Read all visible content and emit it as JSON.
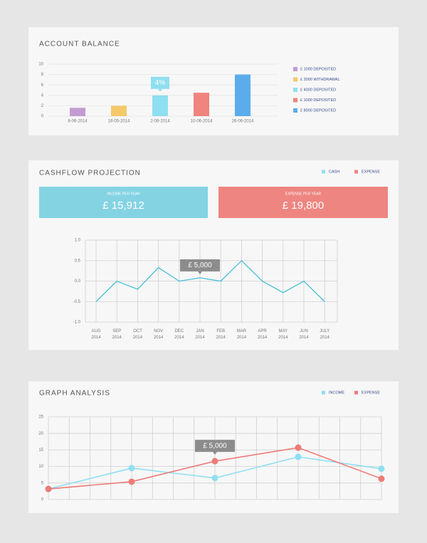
{
  "chart_data": [
    {
      "type": "bar",
      "title": "ACCOUNT BALANCE",
      "categories": [
        "8-06-2014",
        "16-05-2014",
        "2-06-2014",
        "10-06-2014",
        "26-06-2014"
      ],
      "values": [
        1.6,
        2,
        4,
        4.5,
        8
      ],
      "colors": [
        "#c39bd3",
        "#f5c86a",
        "#8fdff0",
        "#f0847e",
        "#5aacea"
      ],
      "legend": [
        "£ 1000 DEPOSITED",
        "£ 2000 WITHDRAWAL",
        "£ 4000 DEPOSITED",
        "£ 1000 DEPOSITED",
        "£ 8000 DEPOSITED"
      ],
      "ylim": [
        0,
        10
      ],
      "yticks": [
        0,
        2,
        4,
        6,
        8,
        10
      ],
      "grid": true,
      "annotations": [
        {
          "text": "4%",
          "at": "chart_data.0.values.2"
        }
      ]
    },
    {
      "type": "line",
      "title": "CASHFLOW PROJECTION",
      "legend": [
        {
          "name": "CASH",
          "color": "#8fdff0"
        },
        {
          "name": "EXPENSE",
          "color": "#f0847e"
        }
      ],
      "summary": [
        {
          "label": "INCOME PER YEAR",
          "value": "£ 15,912",
          "color": "#84d3e3"
        },
        {
          "label": "EXPENSE PER YEAR",
          "value": "£ 19,800",
          "color": "#ee8580"
        }
      ],
      "categories": [
        "AUG 2014",
        "SEP 2014",
        "OCT 2014",
        "NOV 2014",
        "DEC 2014",
        "JAN 2014",
        "FEB 2014",
        "MAR 2014",
        "APR 2014",
        "MAY 2014",
        "JUN 2014",
        "JULY 2014"
      ],
      "values": [
        -0.5,
        0,
        -0.2,
        0.33,
        0,
        0.08,
        0,
        0.5,
        0,
        -0.28,
        0,
        -0.5
      ],
      "color": "#4bbfd6",
      "markers": false,
      "ylim": [
        -1,
        1
      ],
      "yticks": [
        {
          "value": 1,
          "label": "1.0"
        },
        {
          "value": 0.5,
          "label": "0.5"
        },
        {
          "value": 0,
          "label": "0.0"
        },
        {
          "value": -0.5,
          "label": "-0.5"
        },
        {
          "value": -1,
          "label": "-1.0"
        }
      ],
      "grid": true,
      "annotations": [
        {
          "text": "£ 5,000",
          "at": "chart_data.1.values.5"
        }
      ]
    },
    {
      "type": "line",
      "title": "GRAPH ANALYSIS",
      "categories": [
        null,
        null,
        null,
        null,
        null
      ],
      "series": [
        {
          "name": "INCOME",
          "color": "#8fdff0",
          "values": [
            3.2,
            9.5,
            6.5,
            12.9,
            9.3
          ]
        },
        {
          "name": "EXPENSE",
          "color": "#ee7b78",
          "values": [
            3.2,
            5.4,
            11.6,
            15.7,
            6.3
          ]
        }
      ],
      "markers": true,
      "ylim": [
        0,
        25
      ],
      "yticks": [
        0,
        5,
        10,
        15,
        20,
        25
      ],
      "grid": true,
      "annotations": [
        {
          "text": "£ 5,000",
          "at": "chart_data.2.series.1.values.2"
        }
      ]
    }
  ]
}
